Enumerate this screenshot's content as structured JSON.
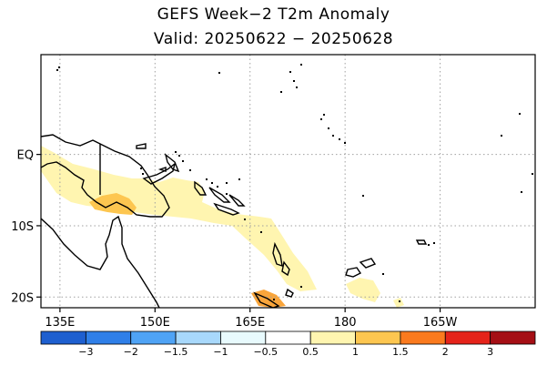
{
  "title": "GEFS Week−2 T2m Anomaly",
  "subtitle": "Valid: 20250622 − 20250628",
  "map": {
    "lon_range": [
      132,
      210
    ],
    "lat_range": [
      -21.5,
      14
    ],
    "lat_ticks": [
      {
        "value": 0,
        "label": "EQ"
      },
      {
        "value": -10,
        "label": "10S"
      },
      {
        "value": -20,
        "label": "20S"
      }
    ],
    "lon_ticks": [
      {
        "value": 135,
        "label": "135E"
      },
      {
        "value": 150,
        "label": "150E"
      },
      {
        "value": 165,
        "label": "165E"
      },
      {
        "value": 180,
        "label": "180"
      },
      {
        "value": 195,
        "label": "165W"
      }
    ],
    "gridlines": true
  },
  "colorbar": {
    "labels": [
      "−3",
      "−2",
      "−1.5",
      "−1",
      "−0.5",
      "0.5",
      "1",
      "1.5",
      "2",
      "3"
    ],
    "colors": [
      "#1e5fcf",
      "#2f7fe8",
      "#4fa3f5",
      "#a8d8fb",
      "#e8fafd",
      "#ffffff",
      "#fff5b0",
      "#fdc650",
      "#fa7a1e",
      "#e5231a",
      "#a50f15"
    ]
  },
  "anomaly_colors": {
    "light": "#fff5b0",
    "medium": "#fdc650",
    "strong": "#f9a53b"
  }
}
